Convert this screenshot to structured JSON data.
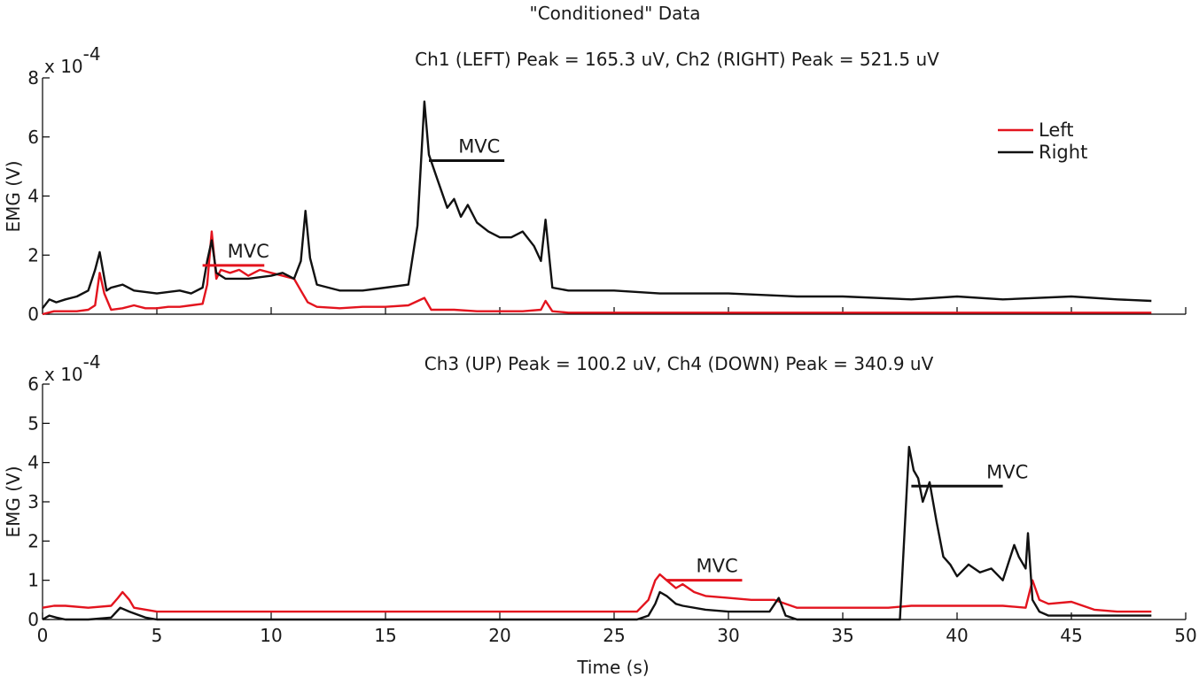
{
  "figure_title": "\"Conditioned\" Data",
  "colors": {
    "left": "#e3141e",
    "right": "#111111"
  },
  "legend": {
    "placement": "top-right",
    "entries": [
      "Left",
      "Right"
    ]
  },
  "chart_data": [
    {
      "type": "line",
      "title": "Ch1 (LEFT) Peak = 165.3 uV, Ch2 (RIGHT) Peak = 521.5 uV",
      "ylabel": "EMG (V)",
      "xlabel": "",
      "exponent_label": "x 10",
      "exponent_power": "-4",
      "xlim": [
        0,
        50
      ],
      "ylim": [
        0,
        8
      ],
      "yticks": [
        "0",
        "2",
        "4",
        "6",
        "8"
      ],
      "xticks": [
        0,
        5,
        10,
        15,
        20,
        25,
        30,
        35,
        40,
        45,
        50
      ],
      "grid": false,
      "series": [
        {
          "name": "Left",
          "x": [
            0,
            0.5,
            1.0,
            1.5,
            2.0,
            2.3,
            2.5,
            2.7,
            3.0,
            3.5,
            4.0,
            4.5,
            5.0,
            5.5,
            6.0,
            6.5,
            7.0,
            7.2,
            7.4,
            7.6,
            7.8,
            8.2,
            8.6,
            9.0,
            9.5,
            10.0,
            10.5,
            11.0,
            11.3,
            11.6,
            12.0,
            13.0,
            14.0,
            15.0,
            16.0,
            16.7,
            17.0,
            18.0,
            19.0,
            20.0,
            21.0,
            21.8,
            22.0,
            22.3,
            23.0,
            25.0,
            27.0,
            30.0,
            32.0,
            33.0,
            35.0,
            38.0,
            40.0,
            42.0,
            45.0,
            48.5
          ],
          "values": [
            0.0,
            0.1,
            0.1,
            0.1,
            0.15,
            0.3,
            1.4,
            0.7,
            0.15,
            0.2,
            0.3,
            0.2,
            0.2,
            0.25,
            0.25,
            0.3,
            0.35,
            1.0,
            2.8,
            1.2,
            1.5,
            1.4,
            1.5,
            1.3,
            1.5,
            1.4,
            1.3,
            1.2,
            0.8,
            0.4,
            0.25,
            0.2,
            0.25,
            0.25,
            0.3,
            0.55,
            0.15,
            0.15,
            0.1,
            0.1,
            0.1,
            0.15,
            0.45,
            0.1,
            0.05,
            0.05,
            0.05,
            0.05,
            0.05,
            0.05,
            0.05,
            0.05,
            0.05,
            0.05,
            0.05,
            0.05
          ]
        },
        {
          "name": "Right",
          "x": [
            0,
            0.3,
            0.6,
            1.0,
            1.5,
            2.0,
            2.3,
            2.5,
            2.8,
            3.0,
            3.5,
            4.0,
            5.0,
            6.0,
            6.5,
            7.0,
            7.2,
            7.4,
            7.6,
            8.0,
            9.0,
            10.0,
            10.5,
            11.0,
            11.3,
            11.5,
            11.7,
            12.0,
            13.0,
            14.0,
            15.0,
            16.0,
            16.4,
            16.7,
            16.9,
            17.3,
            17.7,
            18.0,
            18.3,
            18.6,
            19.0,
            19.5,
            20.0,
            20.5,
            21.0,
            21.5,
            21.8,
            22.0,
            22.3,
            23.0,
            25.0,
            27.0,
            30.0,
            33.0,
            35.0,
            38.0,
            40.0,
            42.0,
            45.0,
            47.0,
            48.5
          ],
          "values": [
            0.2,
            0.5,
            0.4,
            0.5,
            0.6,
            0.8,
            1.5,
            2.1,
            0.8,
            0.9,
            1.0,
            0.8,
            0.7,
            0.8,
            0.7,
            0.9,
            1.8,
            2.5,
            1.4,
            1.2,
            1.2,
            1.3,
            1.4,
            1.2,
            1.8,
            3.5,
            1.9,
            1.0,
            0.8,
            0.8,
            0.9,
            1.0,
            3.0,
            7.2,
            5.4,
            4.5,
            3.6,
            3.9,
            3.3,
            3.7,
            3.1,
            2.8,
            2.6,
            2.6,
            2.8,
            2.3,
            1.8,
            3.2,
            0.9,
            0.8,
            0.8,
            0.7,
            0.7,
            0.6,
            0.6,
            0.5,
            0.6,
            0.5,
            0.6,
            0.5,
            0.45
          ]
        }
      ],
      "annotations": [
        {
          "text": "MVC",
          "series": "Left",
          "value": 1.65,
          "x_start": 7.0,
          "x_end": 9.7,
          "label_x": 9.0
        },
        {
          "text": "MVC",
          "series": "Right",
          "value": 5.2,
          "x_start": 16.9,
          "x_end": 20.2,
          "label_x": 19.1
        }
      ]
    },
    {
      "type": "line",
      "title": "Ch3 (UP) Peak = 100.2 uV, Ch4 (DOWN) Peak = 340.9 uV",
      "ylabel": "EMG (V)",
      "xlabel": "Time (s)",
      "exponent_label": "x 10",
      "exponent_power": "-4",
      "xlim": [
        0,
        50
      ],
      "ylim": [
        0,
        6
      ],
      "yticks": [
        "0",
        "1",
        "2",
        "3",
        "4",
        "5",
        "6"
      ],
      "xticks": [
        0,
        5,
        10,
        15,
        20,
        25,
        30,
        35,
        40,
        45,
        50
      ],
      "xticklabels": [
        "0",
        "5",
        "10",
        "15",
        "20",
        "25",
        "30",
        "35",
        "40",
        "45",
        "50"
      ],
      "grid": false,
      "series": [
        {
          "name": "Left",
          "x": [
            0,
            0.5,
            1.0,
            2.0,
            3.0,
            3.3,
            3.5,
            3.8,
            4.0,
            5.0,
            8.0,
            12.0,
            16.0,
            20.0,
            25.0,
            26.0,
            26.5,
            26.8,
            27.0,
            27.3,
            27.7,
            28.0,
            28.5,
            29.0,
            30.0,
            31.0,
            32.0,
            33.0,
            35.0,
            37.0,
            38.0,
            40.0,
            42.0,
            43.0,
            43.3,
            43.6,
            44.0,
            45.0,
            46.0,
            47.0,
            48.5
          ],
          "values": [
            0.3,
            0.35,
            0.35,
            0.3,
            0.35,
            0.55,
            0.7,
            0.5,
            0.3,
            0.2,
            0.2,
            0.2,
            0.2,
            0.2,
            0.2,
            0.2,
            0.5,
            1.0,
            1.15,
            1.0,
            0.8,
            0.9,
            0.7,
            0.6,
            0.55,
            0.5,
            0.5,
            0.3,
            0.3,
            0.3,
            0.35,
            0.35,
            0.35,
            0.3,
            1.0,
            0.5,
            0.4,
            0.45,
            0.25,
            0.2,
            0.2
          ]
        },
        {
          "name": "Right",
          "x": [
            0,
            0.3,
            0.6,
            1.0,
            2.0,
            3.0,
            3.4,
            3.8,
            4.5,
            5.0,
            10.0,
            20.0,
            26.0,
            26.5,
            26.8,
            27.0,
            27.3,
            27.7,
            28.0,
            29.0,
            30.0,
            31.0,
            31.8,
            32.2,
            32.5,
            33.0,
            35.0,
            37.5,
            37.9,
            38.1,
            38.3,
            38.5,
            38.8,
            39.1,
            39.4,
            39.7,
            40.0,
            40.5,
            41.0,
            41.5,
            42.0,
            42.5,
            42.7,
            43.0,
            43.1,
            43.3,
            43.6,
            44.0,
            46.0,
            48.5
          ],
          "values": [
            0.0,
            0.1,
            0.05,
            0.0,
            0.0,
            0.05,
            0.3,
            0.2,
            0.05,
            0.0,
            0.0,
            0.0,
            0.0,
            0.1,
            0.4,
            0.7,
            0.6,
            0.4,
            0.35,
            0.25,
            0.2,
            0.2,
            0.2,
            0.55,
            0.1,
            0.0,
            0.0,
            0.0,
            4.4,
            3.8,
            3.6,
            3.0,
            3.5,
            2.5,
            1.6,
            1.4,
            1.1,
            1.4,
            1.2,
            1.3,
            1.0,
            1.9,
            1.6,
            1.3,
            2.2,
            0.5,
            0.2,
            0.1,
            0.1,
            0.1
          ]
        }
      ],
      "annotations": [
        {
          "text": "MVC",
          "series": "Left",
          "value": 1.0,
          "x_start": 27.3,
          "x_end": 30.6,
          "label_x": 29.5
        },
        {
          "text": "MVC",
          "series": "Right",
          "value": 3.4,
          "x_start": 38.0,
          "x_end": 42.0,
          "label_x": 42.2
        }
      ]
    }
  ]
}
